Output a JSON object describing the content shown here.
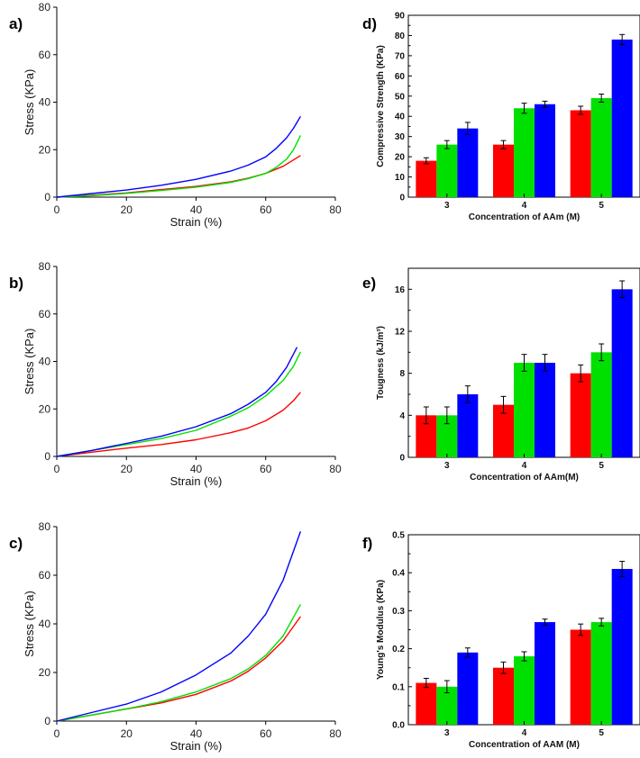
{
  "colors": {
    "red": "#ff0000",
    "green": "#00e000",
    "blue": "#0000ff"
  },
  "chart_data": [
    {
      "panel": "a)",
      "type": "line",
      "xlabel": "Strain (%)",
      "ylabel": "Stress (KPa)",
      "xlim": [
        0,
        80
      ],
      "ylim": [
        0,
        80
      ],
      "xticks": [
        "0",
        "20",
        "40",
        "60",
        "80"
      ],
      "yticks": [
        "0",
        "20",
        "40",
        "60",
        "80"
      ],
      "series": [
        {
          "name": "red",
          "color": "#ff0000",
          "x": [
            0,
            10,
            20,
            30,
            40,
            50,
            55,
            60,
            65,
            70
          ],
          "y": [
            0,
            0.8,
            1.8,
            3.2,
            4.5,
            6.5,
            8,
            10,
            13,
            17.5
          ]
        },
        {
          "name": "green",
          "color": "#00e000",
          "x": [
            0,
            10,
            20,
            30,
            40,
            50,
            55,
            60,
            63,
            66,
            68,
            70
          ],
          "y": [
            0,
            0.6,
            1.6,
            2.8,
            4.2,
            6.2,
            7.8,
            10,
            12.5,
            16,
            20,
            26
          ]
        },
        {
          "name": "blue",
          "color": "#0000ff",
          "x": [
            0,
            10,
            20,
            30,
            40,
            50,
            55,
            60,
            63,
            66,
            68,
            70
          ],
          "y": [
            0,
            1.5,
            3,
            5,
            7.5,
            11,
            13.5,
            17,
            20.5,
            25,
            29,
            34
          ]
        }
      ]
    },
    {
      "panel": "b)",
      "type": "line",
      "xlabel": "Strain (%)",
      "ylabel": "Stress (KPa)",
      "xlim": [
        0,
        80
      ],
      "ylim": [
        0,
        80
      ],
      "xticks": [
        "0",
        "20",
        "40",
        "60",
        "80"
      ],
      "yticks": [
        "0",
        "20",
        "40",
        "60",
        "80"
      ],
      "series": [
        {
          "name": "red",
          "color": "#ff0000",
          "x": [
            0,
            10,
            20,
            30,
            40,
            50,
            55,
            60,
            65,
            68,
            70
          ],
          "y": [
            0,
            1.8,
            3.5,
            5,
            7,
            10,
            12,
            15,
            19.5,
            23.5,
            27
          ]
        },
        {
          "name": "green",
          "color": "#00e000",
          "x": [
            0,
            10,
            20,
            30,
            40,
            50,
            55,
            60,
            65,
            68,
            70
          ],
          "y": [
            0,
            2.5,
            5,
            7.5,
            11,
            17,
            20.5,
            25.5,
            32,
            38,
            44
          ]
        },
        {
          "name": "blue",
          "color": "#0000ff",
          "x": [
            0,
            10,
            20,
            30,
            40,
            50,
            55,
            60,
            63,
            66,
            69
          ],
          "y": [
            0,
            2.5,
            5.5,
            8.5,
            12.5,
            18,
            22,
            27,
            31.5,
            37.5,
            46
          ]
        }
      ]
    },
    {
      "panel": "c)",
      "type": "line",
      "xlabel": "Strain (%)",
      "ylabel": "Stress (KPa)",
      "xlim": [
        0,
        80
      ],
      "ylim": [
        0,
        80
      ],
      "xticks": [
        "0",
        "20",
        "40",
        "60",
        "80"
      ],
      "yticks": [
        "0",
        "20",
        "40",
        "60",
        "80"
      ],
      "series": [
        {
          "name": "red",
          "color": "#ff0000",
          "x": [
            0,
            10,
            20,
            30,
            40,
            50,
            55,
            60,
            65,
            70
          ],
          "y": [
            0,
            2.5,
            5,
            7.5,
            11,
            16.5,
            20.5,
            26,
            33,
            43
          ]
        },
        {
          "name": "green",
          "color": "#00e000",
          "x": [
            0,
            10,
            20,
            30,
            40,
            50,
            55,
            60,
            65,
            70
          ],
          "y": [
            0,
            2.5,
            5,
            8,
            12,
            17.5,
            21.5,
            27,
            35,
            48
          ]
        },
        {
          "name": "blue",
          "color": "#0000ff",
          "x": [
            0,
            10,
            20,
            30,
            40,
            50,
            55,
            60,
            65,
            70
          ],
          "y": [
            0,
            3.5,
            7,
            12,
            19,
            28,
            35,
            44,
            58,
            78
          ]
        }
      ]
    },
    {
      "panel": "d)",
      "type": "bar",
      "xlabel": "Concentration of AAm (M)",
      "ylabel": "Compressive Strength (KPa)",
      "ylim": [
        0,
        90
      ],
      "yticks": [
        "0",
        "10",
        "20",
        "30",
        "40",
        "50",
        "60",
        "70",
        "80",
        "90"
      ],
      "categories": [
        "3",
        "4",
        "5"
      ],
      "series": [
        {
          "name": "red",
          "color": "#ff0000",
          "values": [
            18,
            26,
            43
          ],
          "errors": [
            1.5,
            2,
            2
          ]
        },
        {
          "name": "green",
          "color": "#00e000",
          "values": [
            26,
            44,
            49
          ],
          "errors": [
            2,
            2.5,
            2
          ]
        },
        {
          "name": "blue",
          "color": "#0000ff",
          "values": [
            34,
            46,
            78
          ],
          "errors": [
            3,
            1.5,
            2.5
          ]
        }
      ]
    },
    {
      "panel": "e)",
      "type": "bar",
      "xlabel": "Concentration of AAm(M)",
      "ylabel": "Tougness (kJ/m³)",
      "ylim": [
        0,
        18
      ],
      "yticks": [
        "0",
        "4",
        "8",
        "12",
        "16"
      ],
      "categories": [
        "3",
        "4",
        "5"
      ],
      "series": [
        {
          "name": "red",
          "color": "#ff0000",
          "values": [
            4,
            5,
            8
          ],
          "errors": [
            0.8,
            0.8,
            0.8
          ]
        },
        {
          "name": "green",
          "color": "#00e000",
          "values": [
            4,
            9,
            10
          ],
          "errors": [
            0.8,
            0.8,
            0.8
          ]
        },
        {
          "name": "blue",
          "color": "#0000ff",
          "values": [
            6,
            9,
            16
          ],
          "errors": [
            0.8,
            0.8,
            0.8
          ]
        }
      ]
    },
    {
      "panel": "f)",
      "type": "bar",
      "xlabel": "Concentration of AAM (M)",
      "ylabel": "Young's Modulus (KPa)",
      "ylim": [
        0,
        0.5
      ],
      "yticks": [
        "0.0",
        "0.1",
        "0.2",
        "0.3",
        "0.4",
        "0.5"
      ],
      "categories": [
        "3",
        "4",
        "5"
      ],
      "series": [
        {
          "name": "red",
          "color": "#ff0000",
          "values": [
            0.11,
            0.15,
            0.25
          ],
          "errors": [
            0.012,
            0.015,
            0.015
          ]
        },
        {
          "name": "green",
          "color": "#00e000",
          "values": [
            0.1,
            0.18,
            0.27
          ],
          "errors": [
            0.016,
            0.012,
            0.01
          ]
        },
        {
          "name": "blue",
          "color": "#0000ff",
          "values": [
            0.19,
            0.27,
            0.41
          ],
          "errors": [
            0.012,
            0.008,
            0.02
          ]
        }
      ]
    }
  ]
}
